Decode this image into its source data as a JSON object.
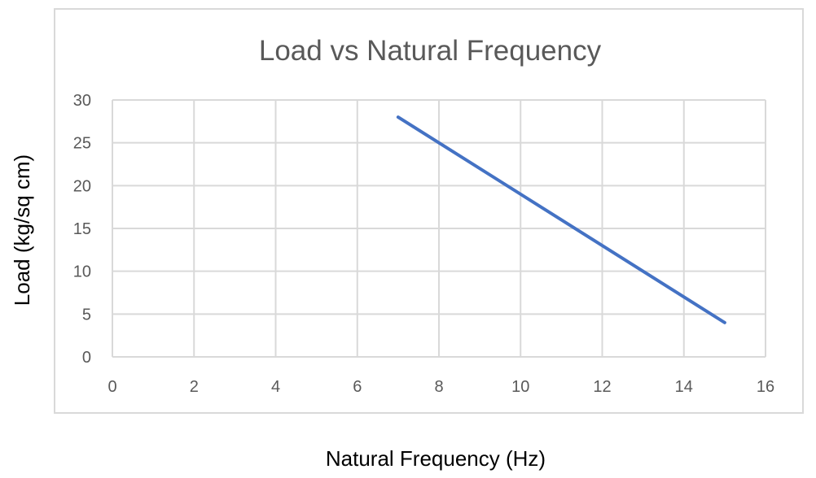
{
  "chart_data": {
    "type": "line",
    "title": "Load vs Natural Frequency",
    "xlabel": "Natural Frequency (Hz)",
    "ylabel": "Load (kg/sq cm)",
    "xlim": [
      0,
      16
    ],
    "ylim": [
      0,
      30
    ],
    "xticks": [
      0,
      2,
      4,
      6,
      8,
      10,
      12,
      14,
      16
    ],
    "yticks": [
      0,
      5,
      10,
      15,
      20,
      25,
      30
    ],
    "grid": true,
    "legend": "none",
    "series": [
      {
        "color": "#4472c4",
        "x": [
          7,
          15
        ],
        "y": [
          28,
          4
        ]
      }
    ]
  }
}
